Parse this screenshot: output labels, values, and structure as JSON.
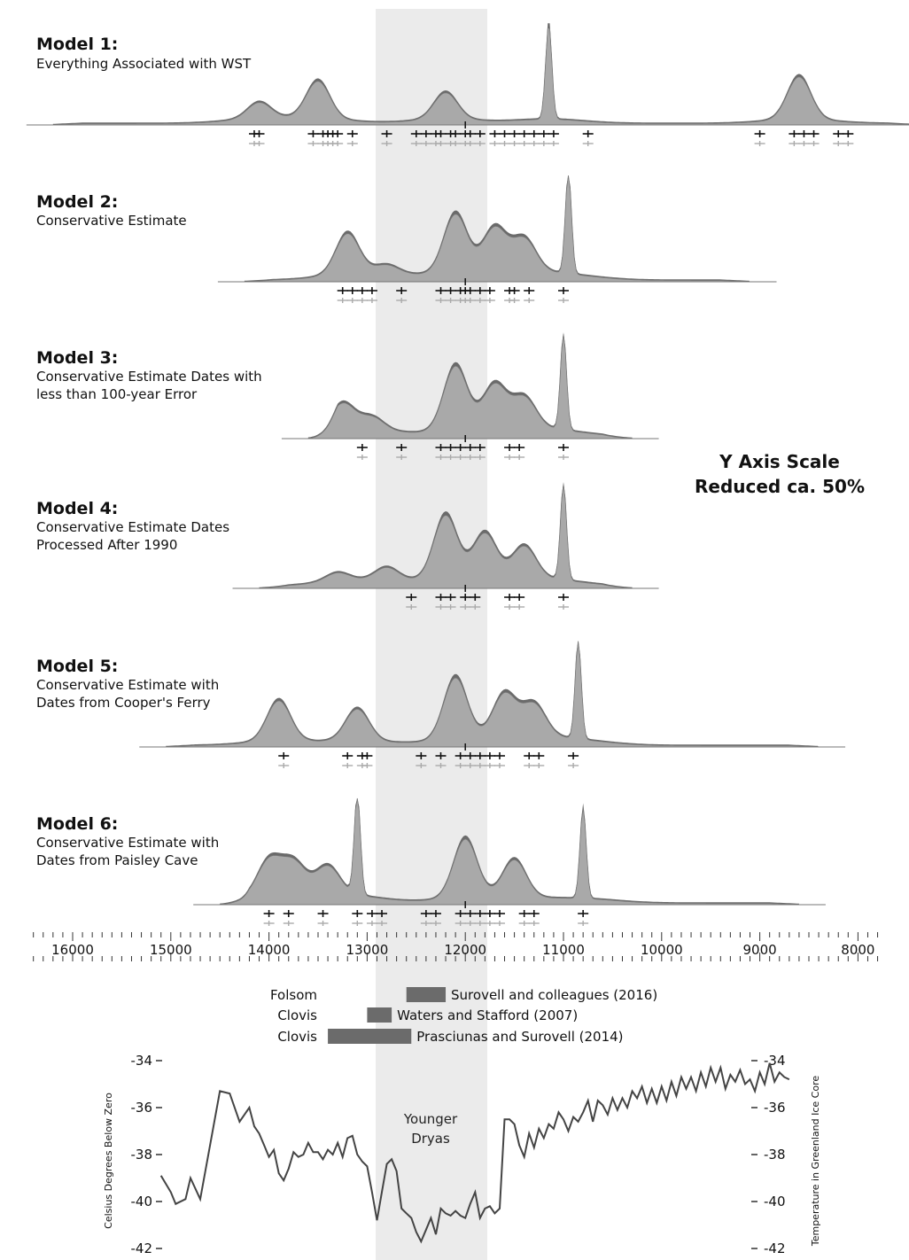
{
  "colors": {
    "density_fill": "#a9a9a9",
    "density_dark": "#6a6a6a",
    "younger_dryas_band": "#ebebeb",
    "bar_fill": "#6b6b6b",
    "line": "#444444"
  },
  "annotation": {
    "line1": "Y Axis Scale",
    "line2": "Reduced ca. 50%"
  },
  "chart_data": [
    {
      "type": "area",
      "x_unit": "cal BP",
      "title": "Model 1:",
      "subtitle": [
        "Everything Associated with WST"
      ],
      "x_range": [
        16200,
        7400
      ],
      "peaks": [
        [
          14100,
          0.15
        ],
        [
          13500,
          0.35
        ],
        [
          12200,
          0.25
        ],
        [
          11150,
          0.9
        ],
        [
          8600,
          0.4
        ]
      ],
      "dates": [
        14150,
        14100,
        13550,
        13450,
        13400,
        13350,
        13300,
        13150,
        12800,
        12500,
        12400,
        12300,
        12250,
        12150,
        12100,
        12000,
        11950,
        11850,
        11700,
        11600,
        11500,
        11400,
        11300,
        11200,
        11100,
        10750,
        9000,
        8650,
        8550,
        8450,
        8200,
        8100
      ]
    },
    {
      "type": "area",
      "x_unit": "cal BP",
      "title": "Model 2:",
      "subtitle": [
        "Conservative Estimate"
      ],
      "x_range": [
        14250,
        9100
      ],
      "peaks": [
        [
          13200,
          0.38
        ],
        [
          12800,
          0.08
        ],
        [
          12100,
          0.55
        ],
        [
          11700,
          0.4
        ],
        [
          11400,
          0.3
        ],
        [
          10950,
          0.95
        ]
      ],
      "dates": [
        13250,
        13150,
        13050,
        12950,
        12650,
        12250,
        12150,
        12050,
        12000,
        11950,
        11850,
        11750,
        11550,
        11500,
        11350,
        11000
      ]
    },
    {
      "type": "area",
      "x_unit": "cal BP",
      "title": "Model 3:",
      "subtitle": [
        "Conservative Estimate Dates with",
        "less than 100-year Error"
      ],
      "x_range": [
        13600,
        10300
      ],
      "peaks": [
        [
          13250,
          0.25
        ],
        [
          12950,
          0.12
        ],
        [
          12100,
          0.6
        ],
        [
          11700,
          0.4
        ],
        [
          11400,
          0.28
        ],
        [
          11000,
          0.9
        ]
      ],
      "dates": [
        13050,
        12650,
        12250,
        12150,
        12050,
        11950,
        11850,
        11550,
        11450,
        11000
      ]
    },
    {
      "type": "area",
      "x_unit": "cal BP",
      "title": "Model 4:",
      "subtitle": [
        "Conservative Estimate Dates",
        "Processed After 1990"
      ],
      "x_range": [
        14100,
        10300
      ],
      "peaks": [
        [
          13300,
          0.08
        ],
        [
          12800,
          0.12
        ],
        [
          12200,
          0.6
        ],
        [
          11800,
          0.42
        ],
        [
          11400,
          0.3
        ],
        [
          11000,
          0.9
        ]
      ],
      "dates": [
        12550,
        12250,
        12150,
        12000,
        11900,
        11550,
        11450,
        11000
      ]
    },
    {
      "type": "area",
      "x_unit": "cal BP",
      "title": "Model 5:",
      "subtitle": [
        "Conservative Estimate with",
        "Dates from Cooper's Ferry"
      ],
      "x_range": [
        15050,
        8400
      ],
      "peaks": [
        [
          13900,
          0.38
        ],
        [
          13100,
          0.3
        ],
        [
          12100,
          0.58
        ],
        [
          11600,
          0.4
        ],
        [
          11300,
          0.3
        ],
        [
          10850,
          0.92
        ]
      ],
      "dates": [
        13850,
        13200,
        13050,
        13000,
        12450,
        12250,
        12050,
        11950,
        11850,
        11750,
        11650,
        11350,
        11250,
        10900
      ]
    },
    {
      "type": "area",
      "x_unit": "cal BP",
      "title": "Model 6:",
      "subtitle": [
        "Conservative Estimate with",
        "Dates from Paisley Cave"
      ],
      "x_range": [
        14500,
        8600
      ],
      "peaks": [
        [
          14000,
          0.32
        ],
        [
          13750,
          0.28
        ],
        [
          13400,
          0.25
        ],
        [
          13100,
          0.95
        ],
        [
          12000,
          0.55
        ],
        [
          11500,
          0.35
        ],
        [
          10800,
          0.85
        ]
      ],
      "dates": [
        14000,
        13800,
        13450,
        13100,
        12950,
        12850,
        12400,
        12300,
        12050,
        11950,
        11850,
        11750,
        11650,
        11400,
        11300,
        10800
      ]
    },
    {
      "type": "bar",
      "x_axis": {
        "ticks": [
          16000,
          15000,
          14000,
          13000,
          12000,
          11000,
          10000,
          9000,
          8000
        ],
        "labels": [
          "16000",
          "15000",
          "14000",
          "13000",
          "12000",
          "11000",
          "10000",
          "9000",
          "8000"
        ]
      },
      "bars": [
        {
          "label": "Folsom",
          "start": 12600,
          "end": 12200,
          "source": "Surovell and colleagues (2016)"
        },
        {
          "label": "Clovis",
          "start": 13000,
          "end": 12750,
          "source": "Waters and Stafford (2007)"
        },
        {
          "label": "Clovis",
          "start": 13400,
          "end": 12550,
          "source": "Prasciunas and Surovell (2014)"
        }
      ]
    },
    {
      "type": "line",
      "ylabel_left": "Celsius Degrees Below Zero",
      "ylabel_right": "Temperature in Greenland Ice Core",
      "y_ticks": [
        -34,
        -36,
        -38,
        -40,
        -42
      ],
      "y_tick_labels": [
        "-34",
        "-36",
        "-38",
        "-40",
        "-42"
      ],
      "ylim": [
        -42,
        -34
      ],
      "band": {
        "from": 12900,
        "to": 11700,
        "label_line1": "Younger",
        "label_line2": "Dryas"
      },
      "x": [
        15100,
        15000,
        14950,
        14850,
        14800,
        14700,
        14600,
        14500,
        14400,
        14300,
        14200,
        14150,
        14100,
        14050,
        14000,
        13950,
        13900,
        13850,
        13800,
        13750,
        13700,
        13650,
        13600,
        13550,
        13500,
        13450,
        13400,
        13350,
        13300,
        13250,
        13200,
        13150,
        13100,
        13050,
        13000,
        12950,
        12900,
        12850,
        12800,
        12750,
        12700,
        12650,
        12600,
        12550,
        12500,
        12450,
        12400,
        12350,
        12300,
        12250,
        12200,
        12150,
        12100,
        12050,
        12000,
        11950,
        11900,
        11850,
        11800,
        11750,
        11700,
        11650,
        11600,
        11550,
        11500,
        11450,
        11400,
        11350,
        11300,
        11250,
        11200,
        11150,
        11100,
        11050,
        11000,
        10950,
        10900,
        10850,
        10800,
        10750,
        10700,
        10650,
        10600,
        10550,
        10500,
        10450,
        10400,
        10350,
        10300,
        10250,
        10200,
        10150,
        10100,
        10050,
        10000,
        9950,
        9900,
        9850,
        9800,
        9750,
        9700,
        9650,
        9600,
        9550,
        9500,
        9450,
        9400,
        9350,
        9300,
        9250,
        9200,
        9150,
        9100,
        9050,
        9000,
        8950,
        8900,
        8850,
        8800,
        8750,
        8700
      ],
      "y": [
        -38.9,
        -39.6,
        -40.1,
        -39.9,
        -39,
        -39.9,
        -37.6,
        -35.3,
        -35.4,
        -36.6,
        -36,
        -36.8,
        -37.1,
        -37.6,
        -38.1,
        -37.8,
        -38.8,
        -39.1,
        -38.6,
        -37.9,
        -38.1,
        -38,
        -37.5,
        -37.9,
        -37.9,
        -38.2,
        -37.8,
        -38,
        -37.5,
        -38.1,
        -37.3,
        -37.2,
        -38,
        -38.3,
        -38.5,
        -39.6,
        -40.8,
        -39.6,
        -38.4,
        -38.2,
        -38.7,
        -40.3,
        -40.5,
        -40.7,
        -41.3,
        -41.7,
        -41.2,
        -40.7,
        -41.4,
        -40.3,
        -40.5,
        -40.6,
        -40.4,
        -40.6,
        -40.7,
        -40.1,
        -39.6,
        -40.7,
        -40.3,
        -40.2,
        -40.5,
        -40.3,
        -36.5,
        -36.5,
        -36.7,
        -37.6,
        -38.1,
        -37.1,
        -37.7,
        -36.9,
        -37.3,
        -36.7,
        -36.9,
        -36.2,
        -36.5,
        -37,
        -36.4,
        -36.6,
        -36.2,
        -35.7,
        -36.6,
        -35.7,
        -35.9,
        -36.3,
        -35.6,
        -36.1,
        -35.6,
        -36,
        -35.3,
        -35.6,
        -35.1,
        -35.8,
        -35.2,
        -35.8,
        -35.1,
        -35.7,
        -34.9,
        -35.5,
        -34.7,
        -35.2,
        -34.7,
        -35.3,
        -34.5,
        -35.1,
        -34.3,
        -34.9,
        -34.3,
        -35.2,
        -34.6,
        -34.9,
        -34.4,
        -35,
        -34.8,
        -35.3,
        -34.5,
        -35,
        -34.1,
        -34.9,
        -34.5,
        -34.7,
        -34.8
      ]
    }
  ]
}
